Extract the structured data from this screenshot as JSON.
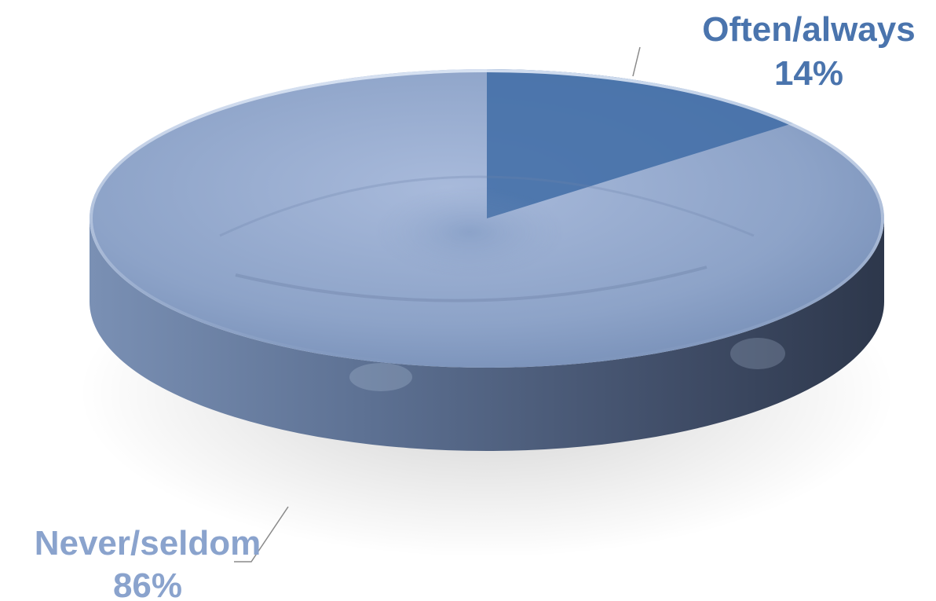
{
  "chart_data": {
    "type": "pie",
    "title": "",
    "categories": [
      "Often/always",
      "Never/seldom"
    ],
    "values": [
      14,
      86
    ],
    "value_labels": [
      "14%",
      "86%"
    ],
    "colors": [
      "#3f6ca6",
      "#8fa6cc"
    ],
    "label_colors": [
      "#4a74ad",
      "#8aa3cd"
    ],
    "style": "3d-disc",
    "legend": "none"
  }
}
